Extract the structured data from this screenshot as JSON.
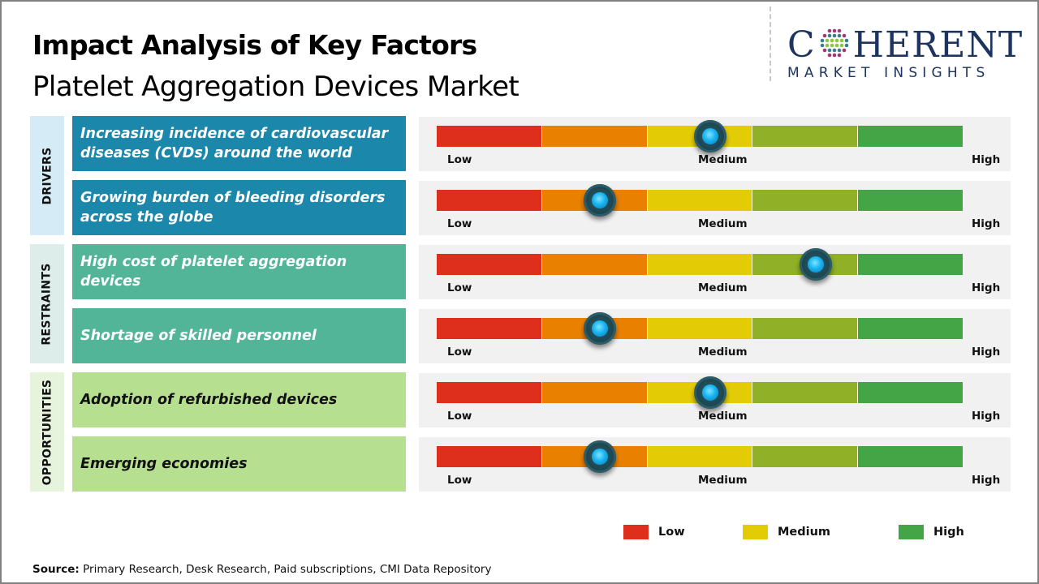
{
  "header": {
    "title": "Impact Analysis of Key Factors",
    "subtitle": "Platelet Aggregation Devices Market"
  },
  "logo": {
    "word_first": "C",
    "word_rest": "HERENT",
    "tagline": "MARKET INSIGHTS",
    "colors": {
      "text": "#1d3461",
      "dot_teal": "#3a7d8c",
      "dot_green": "#8dc63f",
      "dot_magenta": "#a3367a"
    }
  },
  "scale": {
    "segment_colors": [
      "#dd2f1b",
      "#ea8000",
      "#e3cc06",
      "#8fb027",
      "#44a547"
    ],
    "low_label": "Low",
    "medium_label": "Medium",
    "high_label": "High"
  },
  "categories": [
    {
      "label": "DRIVERS",
      "bg": "#d5ecf7",
      "box_color": "#1b87ab",
      "text_color": "#ffffff",
      "factors": [
        {
          "text": "Increasing incidence of cardiovascular diseases (CVDs) around the world",
          "impact": 0.52,
          "impact_level": "Medium"
        },
        {
          "text": "Growing burden of bleeding disorders across the globe",
          "impact": 0.31,
          "impact_level": "Low-Medium"
        }
      ]
    },
    {
      "label": "RESTRAINTS",
      "bg": "#ddeeea",
      "box_color": "#52b597",
      "text_color": "#ffffff",
      "factors": [
        {
          "text": "High cost of platelet aggregation devices",
          "impact": 0.72,
          "impact_level": "Medium-High"
        },
        {
          "text": "Shortage of skilled personnel",
          "impact": 0.31,
          "impact_level": "Low-Medium"
        }
      ]
    },
    {
      "label": "OPPORTUNITIES",
      "bg": "#e6f3dd",
      "box_color": "#b6e08f",
      "text_color": "#111111",
      "factors": [
        {
          "text": "Adoption of refurbished devices",
          "impact": 0.52,
          "impact_level": "Medium"
        },
        {
          "text": "Emerging economies",
          "impact": 0.31,
          "impact_level": "Low-Medium"
        }
      ]
    }
  ],
  "legend": [
    {
      "label": "Low",
      "color": "#dd2f1b"
    },
    {
      "label": "Medium",
      "color": "#e3cc06"
    },
    {
      "label": "High",
      "color": "#44a547"
    }
  ],
  "source": {
    "prefix": "Source:",
    "text": " Primary Research, Desk Research, Paid subscriptions, CMI Data Repository"
  }
}
